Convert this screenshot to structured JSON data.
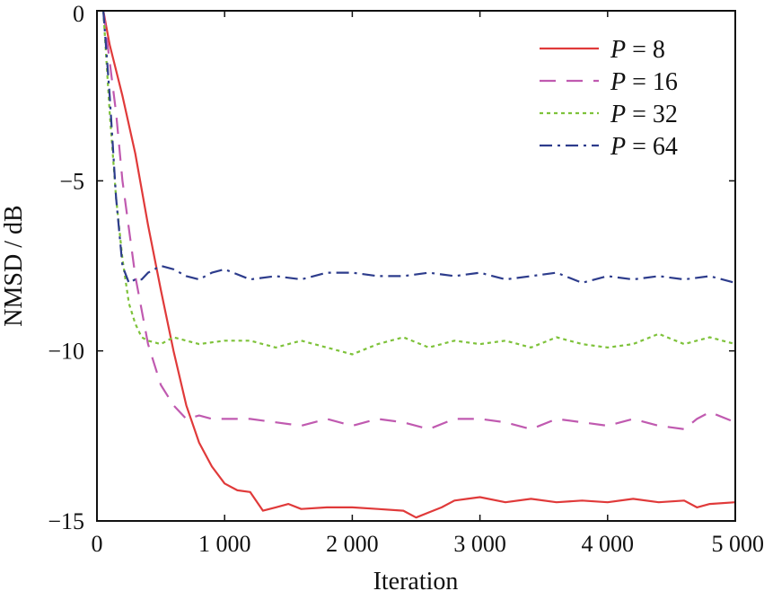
{
  "chart_data": {
    "type": "line",
    "title": "",
    "xlabel": "Iteration",
    "ylabel": "NMSD / dB",
    "xlim": [
      0,
      5000
    ],
    "ylim": [
      -15,
      0
    ],
    "xticks": [
      0,
      1000,
      2000,
      3000,
      4000,
      5000
    ],
    "xtick_labels": [
      "0",
      "1 000",
      "2 000",
      "3 000",
      "4 000",
      "5 000"
    ],
    "yticks": [
      0,
      -5,
      -10,
      -15
    ],
    "ytick_labels": [
      "0",
      "−5",
      "−10",
      "−15"
    ],
    "grid": false,
    "legend_position": "top-right",
    "series": [
      {
        "name": "P = 8",
        "var": "P",
        "eq": " = ",
        "num": "8",
        "color": "#e03a3a",
        "dash": "solid",
        "x": [
          50,
          100,
          200,
          300,
          400,
          500,
          600,
          700,
          800,
          900,
          1000,
          1100,
          1200,
          1300,
          1400,
          1500,
          1600,
          1800,
          2000,
          2200,
          2400,
          2500,
          2600,
          2700,
          2800,
          2900,
          3000,
          3200,
          3400,
          3600,
          3800,
          4000,
          4200,
          4400,
          4600,
          4700,
          4800,
          5000
        ],
        "values": [
          0,
          -1.0,
          -2.5,
          -4.2,
          -6.3,
          -8.2,
          -10.0,
          -11.6,
          -12.7,
          -13.4,
          -13.9,
          -14.1,
          -14.15,
          -14.7,
          -14.6,
          -14.5,
          -14.65,
          -14.6,
          -14.6,
          -14.65,
          -14.7,
          -14.9,
          -14.75,
          -14.6,
          -14.4,
          -14.35,
          -14.3,
          -14.45,
          -14.35,
          -14.45,
          -14.4,
          -14.45,
          -14.35,
          -14.45,
          -14.4,
          -14.6,
          -14.5,
          -14.45
        ]
      },
      {
        "name": "P = 16",
        "var": "P",
        "eq": " = ",
        "num": "16",
        "color": "#c05ab0",
        "dash": "long-dash",
        "x": [
          50,
          100,
          150,
          200,
          300,
          400,
          500,
          600,
          700,
          800,
          900,
          1000,
          1200,
          1400,
          1600,
          1800,
          2000,
          2200,
          2400,
          2600,
          2800,
          3000,
          3200,
          3400,
          3600,
          3800,
          4000,
          4200,
          4400,
          4600,
          4700,
          4800,
          5000
        ],
        "values": [
          0,
          -1.5,
          -3.0,
          -5.0,
          -7.8,
          -9.8,
          -11.0,
          -11.6,
          -12.0,
          -11.9,
          -12.0,
          -12.0,
          -12.0,
          -12.1,
          -12.2,
          -12.0,
          -12.2,
          -12.0,
          -12.1,
          -12.3,
          -12.0,
          -12.0,
          -12.1,
          -12.3,
          -12.0,
          -12.1,
          -12.2,
          -12.0,
          -12.2,
          -12.3,
          -12.0,
          -11.8,
          -12.1
        ]
      },
      {
        "name": "P = 32",
        "var": "P",
        "eq": " = ",
        "num": "32",
        "color": "#7ec23a",
        "dash": "dotted",
        "x": [
          50,
          100,
          150,
          200,
          250,
          300,
          350,
          400,
          500,
          600,
          800,
          1000,
          1200,
          1400,
          1600,
          1800,
          2000,
          2200,
          2400,
          2600,
          2800,
          3000,
          3200,
          3400,
          3600,
          3800,
          4000,
          4200,
          4400,
          4600,
          4800,
          5000
        ],
        "values": [
          0,
          -3.0,
          -5.5,
          -7.3,
          -8.6,
          -9.2,
          -9.6,
          -9.7,
          -9.8,
          -9.6,
          -9.8,
          -9.7,
          -9.7,
          -9.9,
          -9.7,
          -9.9,
          -10.1,
          -9.8,
          -9.6,
          -9.9,
          -9.7,
          -9.8,
          -9.7,
          -9.9,
          -9.6,
          -9.8,
          -9.9,
          -9.8,
          -9.5,
          -9.8,
          -9.6,
          -9.8
        ]
      },
      {
        "name": "P = 64",
        "var": "P",
        "eq": " = ",
        "num": "64",
        "color": "#2d3c8c",
        "dash": "dash-dot",
        "x": [
          50,
          100,
          150,
          200,
          250,
          300,
          350,
          400,
          500,
          600,
          700,
          800,
          900,
          1000,
          1200,
          1400,
          1600,
          1800,
          2000,
          2200,
          2400,
          2600,
          2800,
          3000,
          3200,
          3400,
          3600,
          3800,
          4000,
          4200,
          4400,
          4600,
          4800,
          5000
        ],
        "values": [
          0,
          -2.5,
          -5.5,
          -7.5,
          -8.0,
          -7.9,
          -7.9,
          -7.7,
          -7.5,
          -7.6,
          -7.8,
          -7.9,
          -7.7,
          -7.6,
          -7.9,
          -7.8,
          -7.9,
          -7.7,
          -7.7,
          -7.8,
          -7.8,
          -7.7,
          -7.8,
          -7.7,
          -7.9,
          -7.8,
          -7.7,
          -8.0,
          -7.8,
          -7.9,
          -7.8,
          -7.9,
          -7.8,
          -8.0
        ]
      }
    ]
  }
}
